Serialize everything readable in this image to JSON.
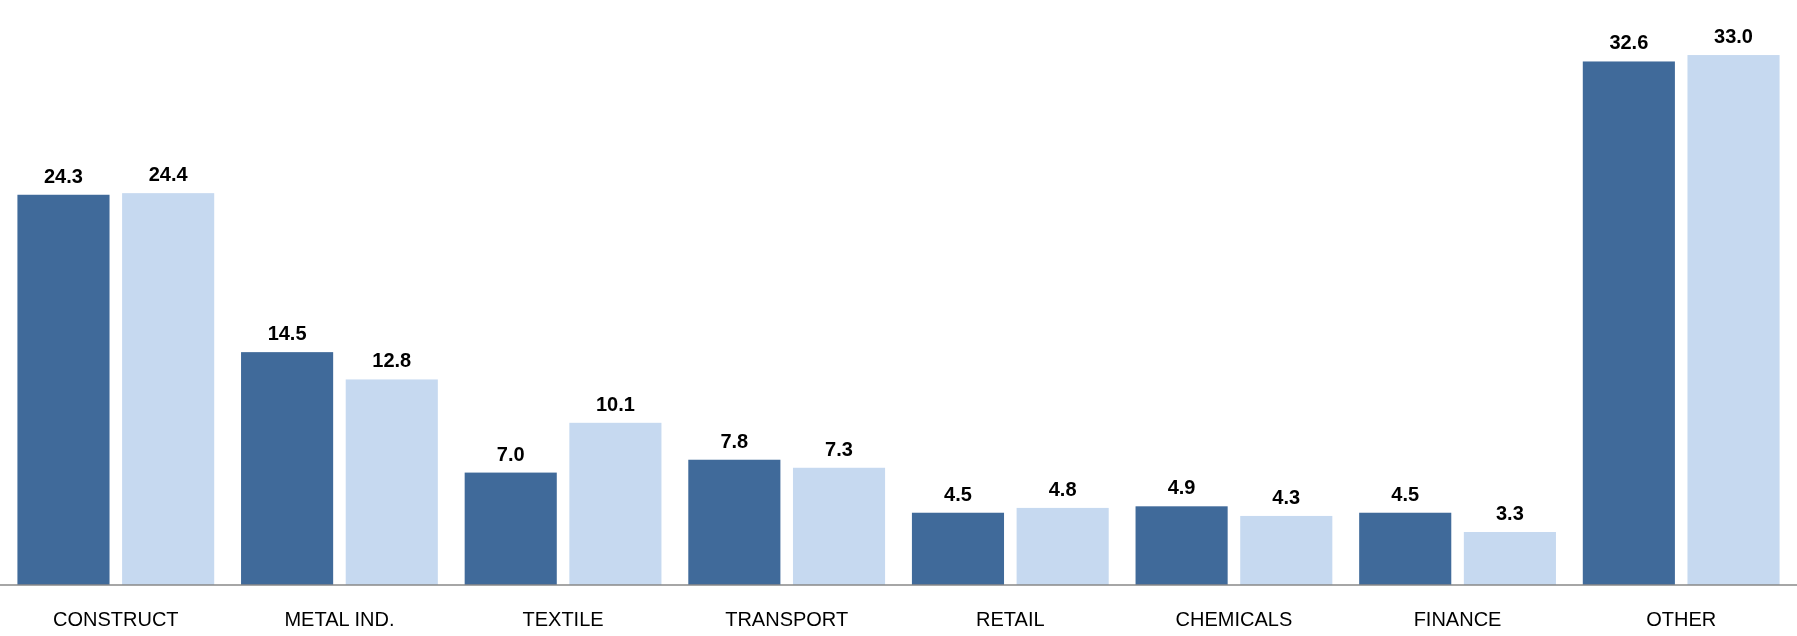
{
  "chart_data": {
    "type": "bar",
    "categories": [
      "CONSTRUCT",
      "METAL IND.",
      "TEXTILE",
      "TRANSPORT",
      "RETAIL",
      "CHEMICALS",
      "FINANCE",
      "OTHER"
    ],
    "series": [
      {
        "color": "#406a9a",
        "values": [
          24.3,
          14.5,
          7.0,
          7.8,
          4.5,
          4.9,
          4.5,
          32.6
        ],
        "value_labels": [
          "24.3",
          "14.5",
          "7.0",
          "7.8",
          "4.5",
          "4.9",
          "4.5",
          "32.6"
        ]
      },
      {
        "color": "#c6d9f0",
        "values": [
          24.4,
          12.8,
          10.1,
          7.3,
          4.8,
          4.3,
          3.3,
          33.0
        ],
        "value_labels": [
          "24.4",
          "12.8",
          "10.1",
          "7.3",
          "4.8",
          "4.3",
          "3.3",
          "33.0"
        ]
      }
    ]
  }
}
